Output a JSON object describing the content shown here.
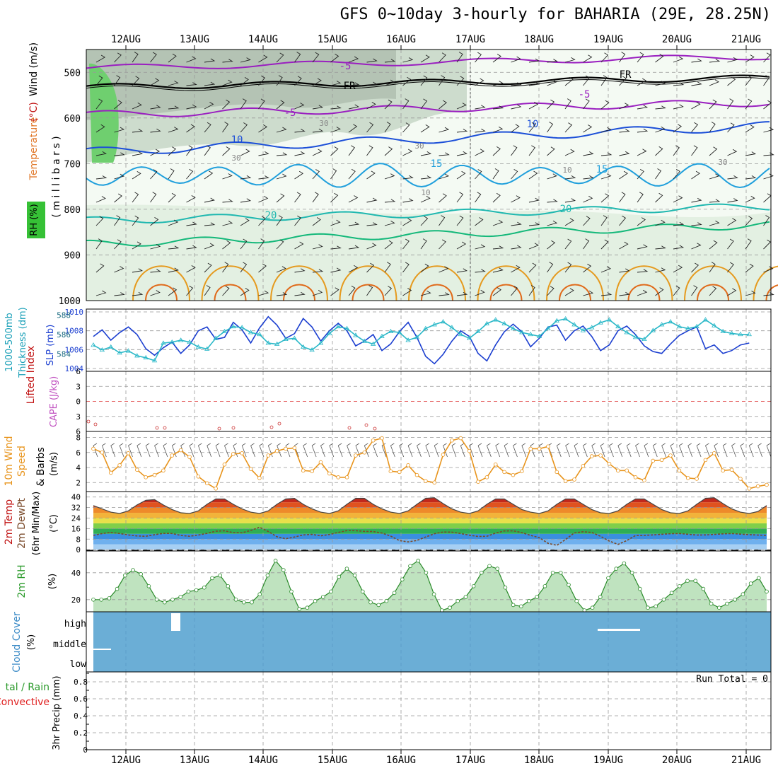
{
  "title": "GFS 0~10day 3-hourly for BAHARIA (29E, 28.25N)",
  "dates": [
    "12AUG",
    "13AUG",
    "14AUG",
    "15AUG",
    "16AUG",
    "17AUG",
    "18AUG",
    "19AUG",
    "20AUG",
    "21AUG"
  ],
  "panel_labels": {
    "upper_rh": "RH (%)",
    "upper_mb": "( m i l l i b a r s )",
    "upper_temperature": "Temperature",
    "upper_temp_unit": "(°C)",
    "upper_wind": "Wind (m/s)",
    "slp_thick_1": "1000-500mb",
    "slp_thick_2": "Thickness (dm)",
    "slp_label": "SLP (mb)",
    "li_label": "Lifted Index",
    "cape_label": "CAPE (J/kg)",
    "wind_1": "10m Wind",
    "wind_2": "Speed",
    "wind_3": "& Barbs",
    "wind_unit": "(m/s)",
    "temp_1": "2m Temp",
    "temp_2": "2m DewPt",
    "temp_3": "(6hr Min/Max)",
    "temp_unit": "(°C)",
    "rh_1": "2m RH",
    "rh_unit": "(%)",
    "cloud_1": "Cloud Cover",
    "cloud_unit": "(%)",
    "precip_1": "tal / Rain",
    "precip_2": "Convective",
    "precip_3": "3hr Precip (mm)",
    "run_total": "Run Total = 0"
  },
  "colors": {
    "magenta_contour": "#9a1fc0",
    "freezing": "#000000",
    "blue_contour": "#1c4fd8",
    "lightblue_contour": "#1f9fdc",
    "teal_contour": "#20b8b0",
    "green_contour": "#14b87a",
    "orange_contour": "#e59a1e",
    "slp_line": "#1c3fd0",
    "thickness_line": "#2ab8c8",
    "wind_speed": "#e8941c",
    "rh_green": "#3aaa3a",
    "cloud_blue": "#6baed6"
  },
  "chart_data": [
    {
      "type": "heatmap",
      "name": "upper-air cross section",
      "ylabel": "millibars",
      "ylim": [
        1000,
        450
      ],
      "y_ticks": [
        "500",
        "600",
        "700",
        "800",
        "900",
        "1000"
      ],
      "contour_labels": [
        "-5",
        "FR",
        "-5",
        "FR",
        "-5",
        "10",
        "10",
        "15",
        "15",
        "20",
        "20",
        "30",
        "30",
        "10",
        "30",
        "10",
        "30"
      ],
      "notes": "Relative humidity shading; temperature contours; wind barbs"
    },
    {
      "type": "line",
      "name": "SLP and thickness",
      "y_left_ticks": [
        "588",
        "586",
        "584"
      ],
      "y_right_ticks": [
        "1010",
        "1008",
        "1006",
        "1004"
      ],
      "series": [
        {
          "name": "SLP (mb)",
          "axis": "right",
          "values": [
            1007.4,
            1008.1,
            1007.0,
            1007.8,
            1008.4,
            1007.6,
            1006.1,
            1005.4,
            1006.2,
            1006.8,
            1005.6,
            1006.5,
            1008.0,
            1008.4,
            1007.1,
            1007.3,
            1008.9,
            1008.1,
            1006.7,
            1008.3,
            1009.5,
            1008.6,
            1007.2,
            1007.7,
            1009.3,
            1008.4,
            1006.9,
            1008.0,
            1008.8,
            1008.0,
            1006.4,
            1006.9,
            1007.6,
            1005.9,
            1006.6,
            1007.9,
            1008.9,
            1007.3,
            1005.3,
            1004.5,
            1005.5,
            1006.9,
            1008.0,
            1007.4,
            1005.6,
            1004.8,
            1006.5,
            1007.9,
            1008.7,
            1007.9,
            1006.3,
            1007.2,
            1008.4,
            1008.6,
            1007.0,
            1008.0,
            1008.5,
            1007.4,
            1005.9,
            1006.5,
            1008.0,
            1008.5,
            1007.6,
            1006.4,
            1005.8,
            1005.6,
            1006.6,
            1007.5,
            1008.0,
            1008.4,
            1006.1,
            1006.5,
            1005.6,
            1005.9,
            1006.5,
            1006.7
          ]
        },
        {
          "name": "1000-500mb Thickness (dm)",
          "axis": "left",
          "values": [
            584.9,
            584.4,
            584.7,
            584.1,
            584.3,
            583.8,
            583.6,
            583.3,
            585.1,
            585.2,
            585.4,
            585.2,
            584.7,
            584.5,
            585.6,
            586.3,
            586.8,
            586.7,
            586.2,
            586.0,
            585.1,
            585.0,
            585.5,
            585.6,
            584.7,
            584.4,
            585.1,
            586.1,
            586.8,
            586.6,
            585.9,
            585.3,
            585.0,
            585.8,
            586.3,
            586.2,
            585.4,
            585.7,
            586.6,
            587.0,
            587.3,
            586.7,
            586.0,
            585.6,
            586.3,
            587.1,
            587.5,
            587.1,
            586.6,
            586.2,
            586.0,
            585.8,
            586.6,
            587.4,
            587.6,
            587.0,
            586.4,
            586.7,
            587.2,
            587.5,
            586.8,
            586.2,
            585.7,
            585.5,
            586.4,
            587.0,
            587.3,
            586.8,
            586.6,
            586.8,
            587.5,
            586.9,
            586.3,
            586.1,
            586.0,
            586.0
          ]
        }
      ]
    },
    {
      "type": "line",
      "name": "Lifted Index / CAPE",
      "y_ticks": [
        "-6",
        "-3",
        "0",
        "3",
        "6"
      ],
      "series": [
        {
          "name": "Lifted Index",
          "values": [
            5.5,
            5.7,
            6.0,
            6.0,
            6.0,
            6.0,
            6.0,
            6.0,
            6.0,
            6.0,
            6.0,
            6.0,
            6.0,
            6.0,
            6.0,
            6.0,
            6.0,
            6.0,
            6.0,
            6.0,
            6.0,
            6.0,
            6.0,
            6.0,
            6.0,
            6.0,
            6.0,
            6.0,
            6.0,
            6.0,
            6.0,
            6.0,
            6.0,
            6.0,
            6.0,
            6.0,
            6.0,
            6.0,
            6.0,
            6.0,
            6.0,
            6.0,
            6.0,
            6.0,
            6.0,
            6.0,
            6.0,
            6.0,
            6.0,
            6.0,
            6.0,
            6.0,
            6.0,
            6.0,
            6.0,
            6.0,
            6.0,
            6.0,
            6.0,
            6.0,
            6.0,
            6.0,
            6.0,
            6.0,
            6.0,
            6.0,
            6.0,
            6.0,
            6.0,
            6.0,
            6.0,
            6.0,
            6.0,
            6.0,
            6.0,
            6.0
          ]
        }
      ]
    },
    {
      "type": "line",
      "name": "10m Wind Speed",
      "ylabel": "(m/s)",
      "y_ticks": [
        "8",
        "6",
        "4",
        "2"
      ],
      "series": [
        {
          "name": "10m Wind Speed",
          "values": [
            6.5,
            6.0,
            3.3,
            4.3,
            5.9,
            3.7,
            2.7,
            3.0,
            3.6,
            5.6,
            6.3,
            5.4,
            2.8,
            1.9,
            1.2,
            4.4,
            5.8,
            5.9,
            3.8,
            2.6,
            5.6,
            6.2,
            6.5,
            6.6,
            3.6,
            3.5,
            4.7,
            3.2,
            2.7,
            2.7,
            5.6,
            6.0,
            7.6,
            7.9,
            3.5,
            3.4,
            4.3,
            3.0,
            2.2,
            2.0,
            5.7,
            7.6,
            7.9,
            6.2,
            2.1,
            2.7,
            4.4,
            3.4,
            3.0,
            3.5,
            6.5,
            6.5,
            6.8,
            3.4,
            2.2,
            2.4,
            4.2,
            5.5,
            5.6,
            4.5,
            3.6,
            3.6,
            2.7,
            2.3,
            4.9,
            5.0,
            5.6,
            3.6,
            2.6,
            2.5,
            5.0,
            5.9,
            3.6,
            3.7,
            2.5,
            1.2,
            1.5,
            1.7
          ]
        }
      ]
    },
    {
      "type": "area",
      "name": "2m Temp / DewPt",
      "ylabel": "(°C)",
      "y_ticks": [
        "40",
        "32",
        "24",
        "16",
        "8",
        "0"
      ],
      "series": [
        {
          "name": "2m Temp",
          "values": [
            33.5,
            31.0,
            28.5,
            27.5,
            29.5,
            34.0,
            37.5,
            38.0,
            34.0,
            30.5,
            28.0,
            27.5,
            29.5,
            34.5,
            38.5,
            38.5,
            34.5,
            31.0,
            28.5,
            27.5,
            29.5,
            34.5,
            38.5,
            39.0,
            34.5,
            31.0,
            28.5,
            27.5,
            29.5,
            34.5,
            39.0,
            39.0,
            34.5,
            31.0,
            28.5,
            27.5,
            29.5,
            34.5,
            39.0,
            39.5,
            35.0,
            31.0,
            28.5,
            27.5,
            29.5,
            34.5,
            38.5,
            38.5,
            34.5,
            30.5,
            28.5,
            27.5,
            29.5,
            34.5,
            38.5,
            38.5,
            34.5,
            30.5,
            28.0,
            27.5,
            29.5,
            34.5,
            38.5,
            38.5,
            34.5,
            30.5,
            28.0,
            27.5,
            29.5,
            34.5,
            39.0,
            39.5,
            35.0,
            31.0,
            28.5,
            27.5,
            29.0,
            33.5
          ]
        },
        {
          "name": "2m DewPt",
          "values": [
            10.8,
            12.2,
            13.1,
            12.3,
            11.2,
            10.4,
            10.2,
            11.3,
            12.4,
            12.3,
            10.8,
            10.2,
            11.1,
            12.4,
            14.0,
            14.3,
            12.9,
            12.8,
            14.6,
            17.0,
            13.8,
            9.8,
            8.3,
            9.6,
            11.2,
            11.6,
            10.5,
            11.5,
            13.1,
            14.5,
            14.4,
            13.9,
            13.8,
            12.6,
            10.3,
            6.9,
            5.9,
            7.0,
            9.6,
            12.1,
            13.4,
            13.3,
            12.3,
            11.0,
            10.0,
            10.2,
            12.6,
            14.2,
            14.3,
            12.9,
            10.8,
            9.1,
            4.8,
            3.3,
            7.7,
            12.7,
            13.6,
            13.1,
            10.1,
            6.5,
            4.0,
            6.9,
            10.7,
            10.9,
            11.2,
            11.7,
            12.1,
            12.3,
            11.7,
            11.1,
            11.2,
            11.6,
            12.0,
            12.2,
            11.8,
            11.4,
            11.1,
            10.8
          ]
        }
      ]
    },
    {
      "type": "area",
      "name": "2m RH",
      "ylabel": "(%)",
      "y_ticks": [
        "40",
        "20"
      ],
      "series": [
        {
          "name": "2m RH",
          "values": [
            20,
            20,
            21,
            28,
            38,
            42,
            39,
            30,
            20,
            18,
            20,
            22,
            26,
            27,
            29,
            36,
            38,
            30,
            20,
            18,
            18,
            24,
            38,
            49,
            42,
            26,
            13,
            14,
            19,
            22,
            26,
            37,
            43,
            38,
            26,
            18,
            16,
            19,
            25,
            35,
            45,
            49,
            40,
            24,
            12,
            14,
            19,
            22,
            30,
            40,
            45,
            43,
            29,
            16,
            15,
            19,
            22,
            30,
            40,
            40,
            31,
            19,
            12,
            14,
            22,
            36,
            43,
            47,
            40,
            28,
            14,
            15,
            20,
            25,
            30,
            34,
            34,
            28,
            17,
            14,
            17,
            20,
            24,
            32,
            36,
            26
          ]
        }
      ]
    },
    {
      "type": "bar",
      "name": "Cloud Cover",
      "y_ticks": [
        "high",
        "middle",
        "low"
      ],
      "notes": "Mostly clear; small high cloud near 12/13 Aug and 19 Aug"
    },
    {
      "type": "bar",
      "name": "3hr Precip",
      "ylabel": "3hr Precip (mm)",
      "y_ticks": [
        "0.8",
        "0.6",
        "0.4",
        "0.2",
        "0"
      ],
      "ylim": [
        0,
        0.9
      ],
      "values": [],
      "notes": "No precipitation"
    }
  ]
}
